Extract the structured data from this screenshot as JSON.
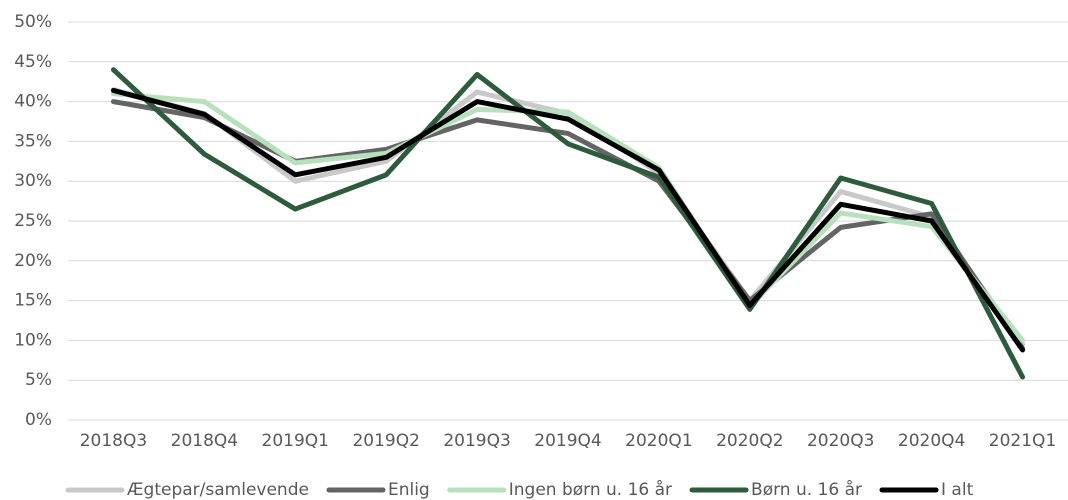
{
  "chart_data": {
    "type": "line",
    "categories": [
      "2018Q3",
      "2018Q4",
      "2019Q1",
      "2019Q2",
      "2019Q3",
      "2019Q4",
      "2020Q1",
      "2020Q2",
      "2020Q3",
      "2020Q4",
      "2021Q1"
    ],
    "series": [
      {
        "name": "Ægtepar/samlevende",
        "color": "#c9c9c9",
        "values": [
          41.5,
          38.5,
          30,
          32.5,
          41.2,
          38.5,
          31,
          15,
          28.7,
          25.5,
          9.5
        ]
      },
      {
        "name": "Enlig",
        "color": "#646464",
        "values": [
          40,
          38,
          32.5,
          34,
          37.7,
          36,
          30,
          15,
          24.2,
          25.9,
          9
        ]
      },
      {
        "name": "Ingen børn u. 16 år",
        "color": "#b8e0bc",
        "values": [
          41,
          40,
          32.3,
          33.5,
          39,
          38.7,
          31.7,
          14.3,
          26,
          24.3,
          10
        ]
      },
      {
        "name": "Børn u. 16 år",
        "color": "#2e5b3e",
        "values": [
          44,
          33.4,
          26.5,
          30.8,
          43.4,
          34.7,
          30.5,
          13.9,
          30.4,
          27.2,
          5.4
        ]
      },
      {
        "name": "I alt",
        "color": "#000000",
        "values": [
          41.4,
          38.4,
          30.8,
          33,
          40,
          37.8,
          31.4,
          14.4,
          27.1,
          25,
          8.8
        ]
      }
    ],
    "ylim": [
      0,
      50
    ],
    "yticks": [
      {
        "value": 0,
        "label": "0%"
      },
      {
        "value": 5,
        "label": "5%"
      },
      {
        "value": 10,
        "label": "10%"
      },
      {
        "value": 15,
        "label": "15%"
      },
      {
        "value": 20,
        "label": "20%"
      },
      {
        "value": 25,
        "label": "25%"
      },
      {
        "value": 30,
        "label": "30%"
      },
      {
        "value": 35,
        "label": "35%"
      },
      {
        "value": 40,
        "label": "40%"
      },
      {
        "value": 45,
        "label": "45%"
      },
      {
        "value": 50,
        "label": "50%"
      }
    ],
    "grid": true,
    "legend": "bottom"
  }
}
